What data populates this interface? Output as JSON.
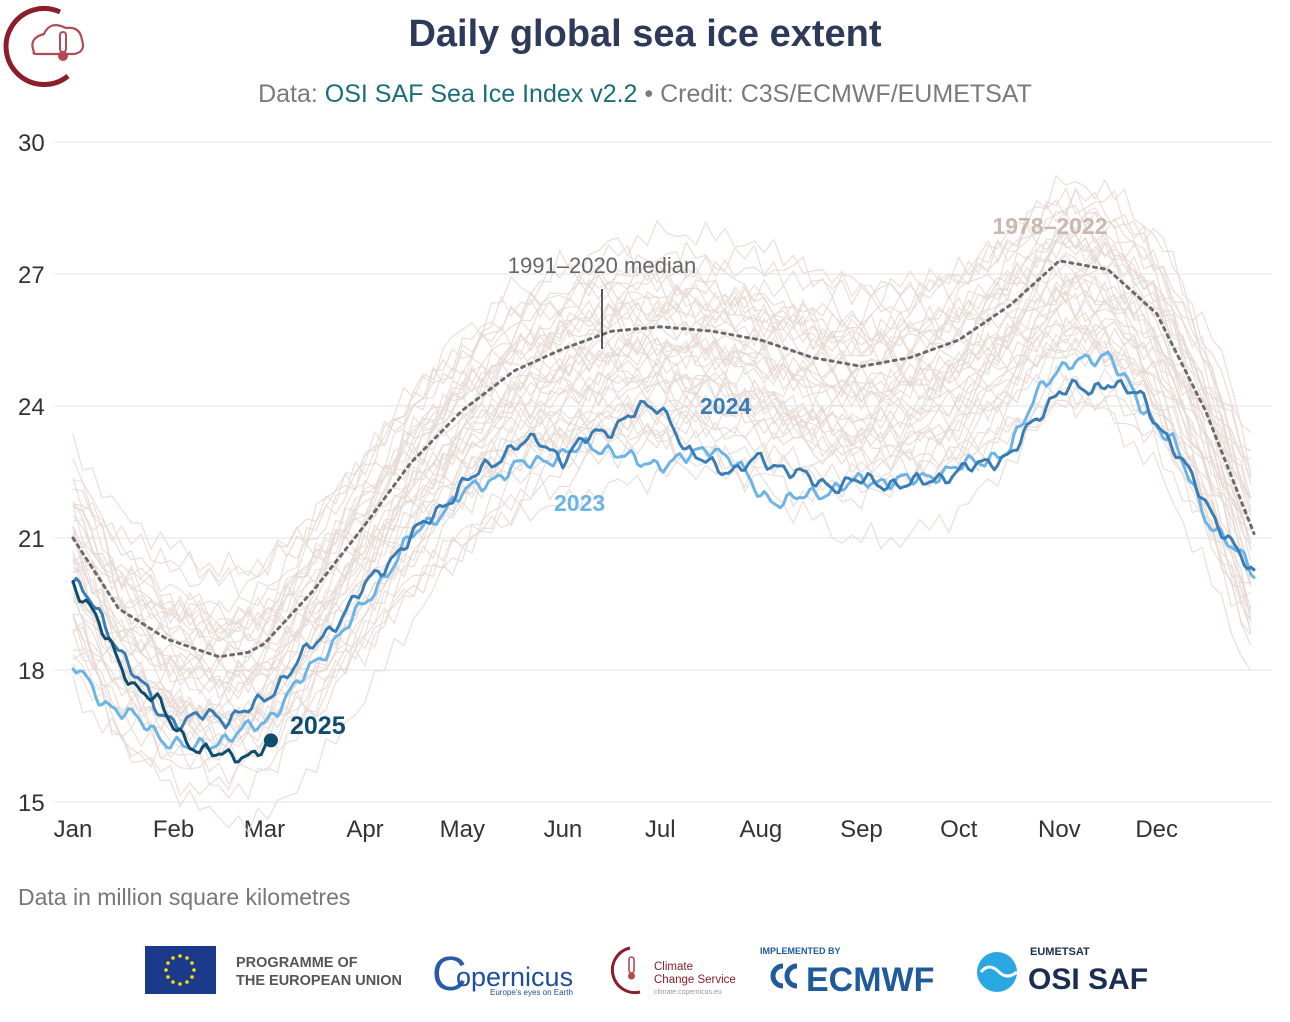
{
  "header": {
    "title": "Daily global sea ice extent",
    "subtitle_prefix": "Data: ",
    "subtitle_source": "OSI SAF Sea Ice Index v2.2",
    "subtitle_credit": " • Credit: C3S/ECMWF/EUMETSAT"
  },
  "footer": {
    "units_note": "Data in million square kilometres",
    "logos": {
      "eu_line1": "PROGRAMME OF",
      "eu_line2": "THE EUROPEAN UNION",
      "copernicus": "opernicus",
      "copernicus_c": "C",
      "copernicus_tag": "Europe's eyes on Earth",
      "c3s_line1": "Climate",
      "c3s_line2": "Change Service",
      "c3s_url": "climate.copernicus.eu",
      "ecmwf_top": "IMPLEMENTED BY",
      "ecmwf": "ECMWF",
      "eumetsat": "EUMETSAT",
      "osisaf": "OSI SAF"
    }
  },
  "colors": {
    "history": "#e6d8d2",
    "median": "#6b6b6b",
    "y2023": "#6cb4e6",
    "y2024": "#3a7db5",
    "y2025": "#0f4c6e",
    "title": "#2e3a59",
    "brand_red": "#8b1e2b"
  },
  "chart_data": {
    "type": "line",
    "ylim": [
      15,
      30
    ],
    "yticks": [
      15,
      18,
      21,
      24,
      27,
      30
    ],
    "xlim": [
      1,
      365
    ],
    "month_ticks": [
      {
        "label": "Jan",
        "day": 1
      },
      {
        "label": "Feb",
        "day": 32
      },
      {
        "label": "Mar",
        "day": 60
      },
      {
        "label": "Apr",
        "day": 91
      },
      {
        "label": "May",
        "day": 121
      },
      {
        "label": "Jun",
        "day": 152
      },
      {
        "label": "Jul",
        "day": 182
      },
      {
        "label": "Aug",
        "day": 213
      },
      {
        "label": "Sep",
        "day": 244
      },
      {
        "label": "Oct",
        "day": 274
      },
      {
        "label": "Nov",
        "day": 305
      },
      {
        "label": "Dec",
        "day": 335
      }
    ],
    "annotations": {
      "history_label": "1978–2022",
      "median_label": "1991–2020 median",
      "label_2024": "2024",
      "label_2023": "2023",
      "label_2025": "2025"
    },
    "series": [
      {
        "name": "1991–2020 median",
        "x": [
          1,
          15,
          30,
          46,
          55,
          60,
          75,
          91,
          105,
          121,
          137,
          152,
          167,
          182,
          198,
          213,
          229,
          244,
          259,
          274,
          290,
          305,
          320,
          335,
          350,
          365
        ],
        "values": [
          21.0,
          19.4,
          18.7,
          18.3,
          18.4,
          18.6,
          19.8,
          21.3,
          22.7,
          23.9,
          24.8,
          25.3,
          25.7,
          25.8,
          25.7,
          25.5,
          25.1,
          24.9,
          25.1,
          25.5,
          26.3,
          27.3,
          27.1,
          26.1,
          23.9,
          21.1
        ]
      },
      {
        "name": "2023",
        "x": [
          1,
          10,
          20,
          30,
          38,
          46,
          60,
          75,
          91,
          105,
          121,
          137,
          152,
          160,
          167,
          175,
          182,
          190,
          198,
          205,
          213,
          220,
          229,
          240,
          244,
          259,
          274,
          290,
          300,
          305,
          315,
          320,
          330,
          340,
          350,
          365
        ],
        "values": [
          18.1,
          17.3,
          16.9,
          16.4,
          16.2,
          16.4,
          16.8,
          18.1,
          19.5,
          21.0,
          22.0,
          22.6,
          22.9,
          23.1,
          23.0,
          22.7,
          22.7,
          22.8,
          23.1,
          22.7,
          22.0,
          21.8,
          22.0,
          22.2,
          22.3,
          22.3,
          22.6,
          23.0,
          24.6,
          24.8,
          25.1,
          25.2,
          24.0,
          23.2,
          21.5,
          20.2
        ]
      },
      {
        "name": "2024",
        "x": [
          1,
          5,
          12,
          20,
          28,
          35,
          42,
          48,
          55,
          60,
          70,
          80,
          91,
          105,
          121,
          137,
          145,
          152,
          160,
          167,
          175,
          182,
          186,
          190,
          198,
          205,
          213,
          220,
          229,
          235,
          244,
          259,
          274,
          290,
          297,
          305,
          310,
          315,
          320,
          330,
          340,
          350,
          365
        ],
        "values": [
          20.0,
          19.7,
          18.9,
          17.9,
          17.0,
          16.8,
          17.0,
          16.9,
          17.1,
          17.3,
          18.2,
          18.9,
          19.9,
          21.0,
          22.2,
          23.1,
          23.2,
          22.8,
          23.3,
          23.5,
          23.9,
          24.0,
          23.6,
          22.9,
          22.7,
          22.5,
          22.8,
          22.6,
          22.3,
          22.2,
          22.3,
          22.2,
          22.5,
          22.9,
          23.6,
          24.4,
          24.4,
          24.3,
          24.6,
          24.2,
          23.1,
          21.8,
          20.1
        ]
      },
      {
        "name": "2025",
        "x": [
          1,
          10,
          20,
          28,
          35,
          40,
          46,
          52,
          56,
          60,
          62
        ],
        "values": [
          20.0,
          18.9,
          17.6,
          17.2,
          16.5,
          16.1,
          16.1,
          16.1,
          16.0,
          16.2,
          16.4
        ]
      }
    ]
  }
}
